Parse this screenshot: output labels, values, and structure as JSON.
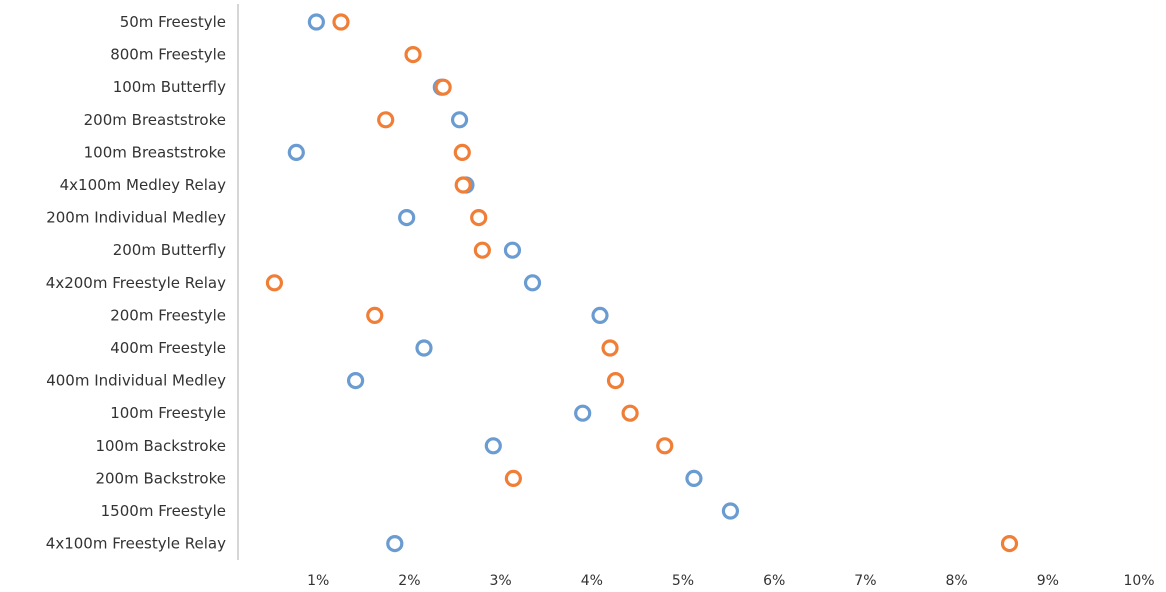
{
  "chart_data": {
    "type": "scatter",
    "orientation": "horizontal-dot",
    "title": "",
    "xlabel": "",
    "ylabel": "",
    "xlim": [
      0,
      10
    ],
    "x_ticks": [
      "1%",
      "2%",
      "3%",
      "4%",
      "5%",
      "6%",
      "7%",
      "8%",
      "9%",
      "10%"
    ],
    "x_tick_values": [
      1,
      2,
      3,
      4,
      5,
      6,
      7,
      8,
      9,
      10
    ],
    "grid": false,
    "legend": "none",
    "categories": [
      "50m Freestyle",
      "800m Freestyle",
      "100m Butterfly",
      "200m Breaststroke",
      "100m Breaststroke",
      "4x100m Medley Relay",
      "200m Individual Medley",
      "200m Butterfly",
      "4x200m Freestyle Relay",
      "200m Freestyle",
      "400m Freestyle",
      "400m Individual Medley",
      "100m Freestyle",
      "100m Backstroke",
      "200m Backstroke",
      "1500m Freestyle",
      "4x100m Freestyle Relay"
    ],
    "series": [
      {
        "color": "#6a9bd1",
        "values": [
          0.98,
          null,
          2.35,
          2.55,
          0.76,
          2.62,
          1.97,
          3.13,
          3.35,
          4.09,
          2.16,
          1.41,
          3.9,
          2.92,
          5.12,
          5.52,
          1.84
        ]
      },
      {
        "color": "#f07e36",
        "values": [
          1.25,
          2.04,
          2.37,
          1.74,
          2.58,
          2.59,
          2.76,
          2.8,
          0.52,
          1.62,
          4.2,
          4.26,
          4.42,
          4.8,
          3.14,
          null,
          8.58
        ]
      }
    ]
  }
}
